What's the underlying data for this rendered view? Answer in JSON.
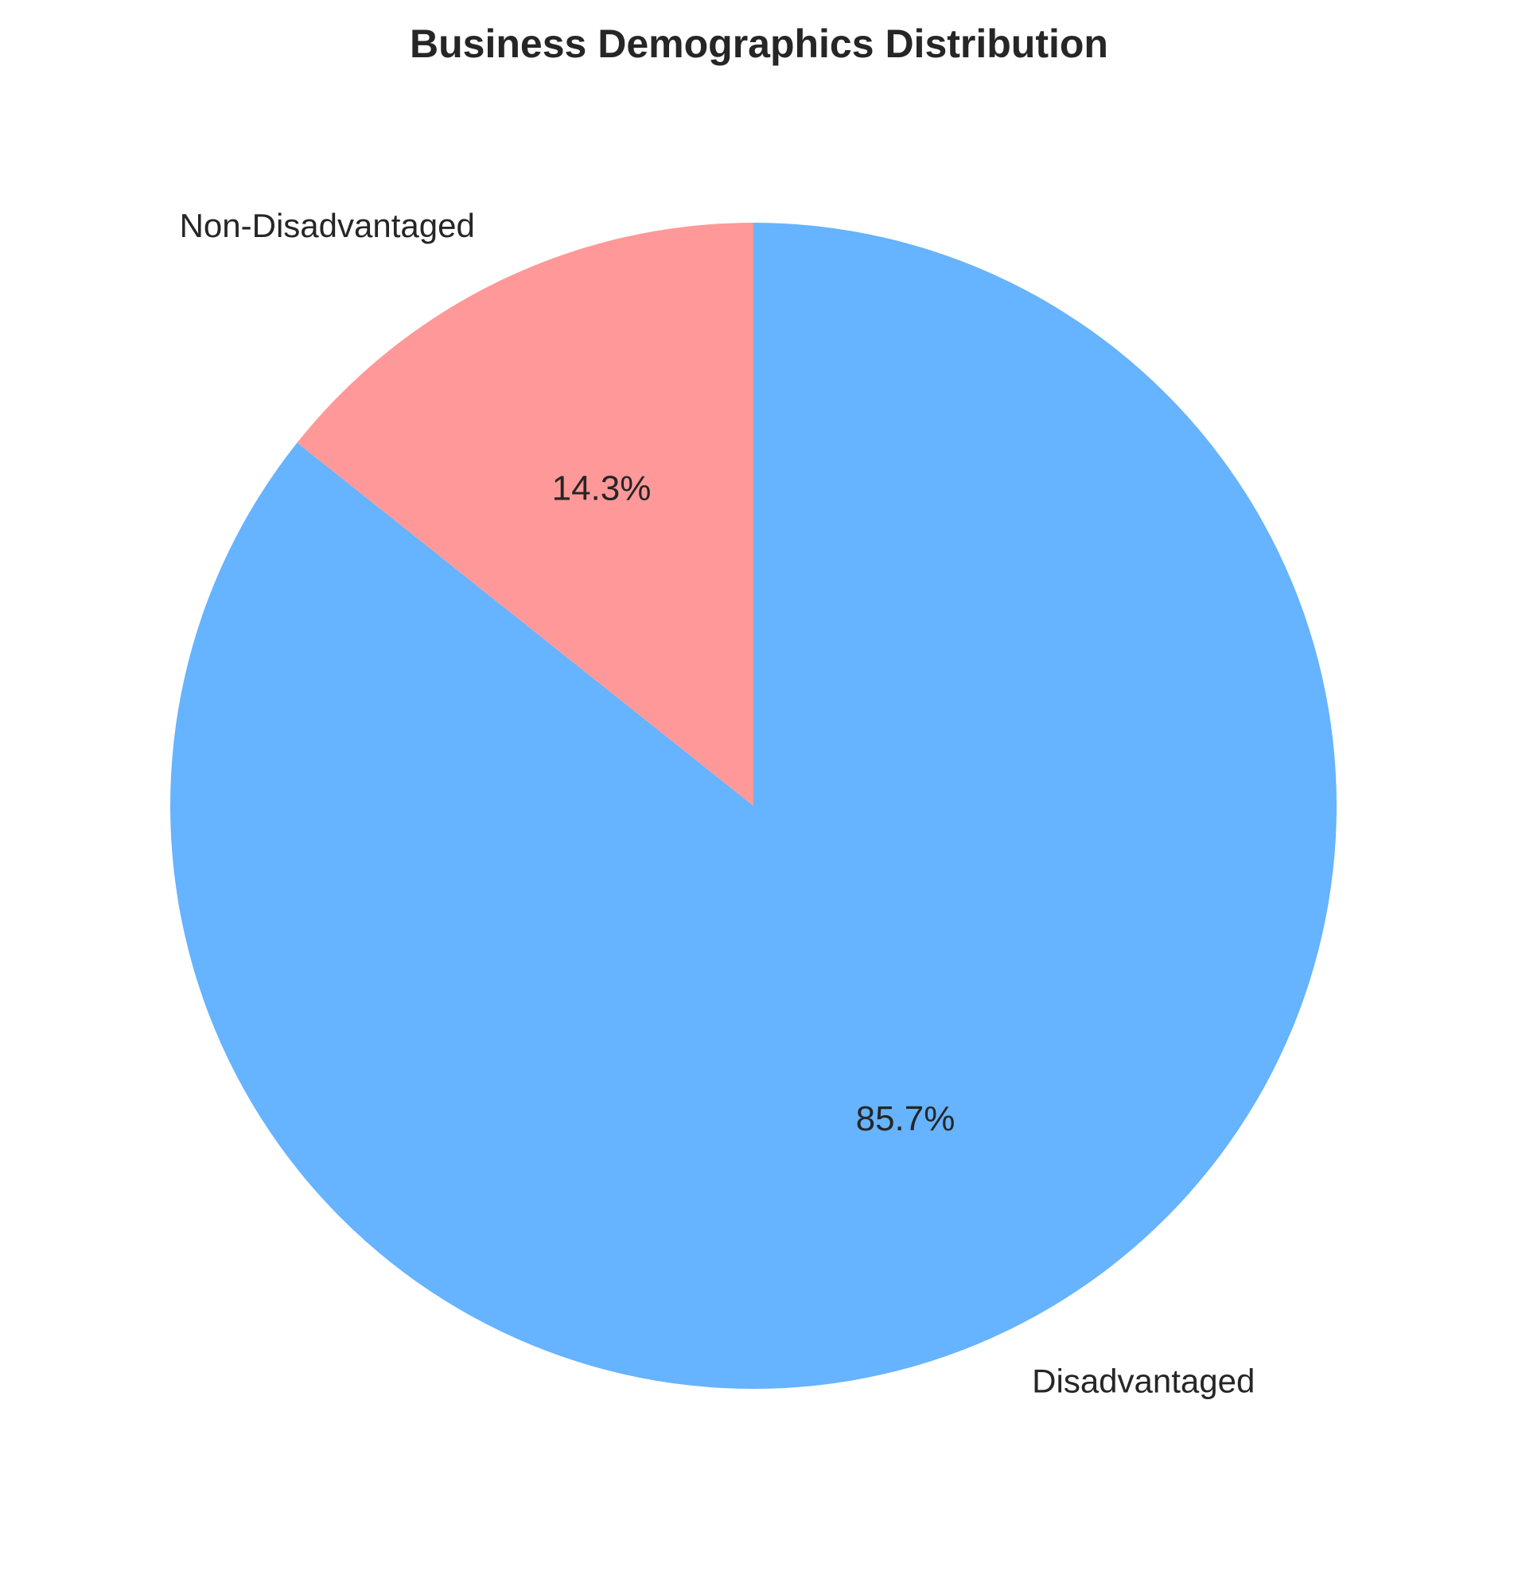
{
  "chart_data": {
    "type": "pie",
    "title": "Business Demographics Distribution",
    "labels": [
      "Disadvantaged",
      "Non-Disadvantaged"
    ],
    "values": [
      85.7,
      14.3
    ],
    "value_labels": [
      "85.7%",
      "14.3%"
    ],
    "colors": [
      "#66b3ff",
      "#ff9999"
    ],
    "start_angle_deg": 90,
    "direction": "clockwise",
    "legend": "none"
  }
}
